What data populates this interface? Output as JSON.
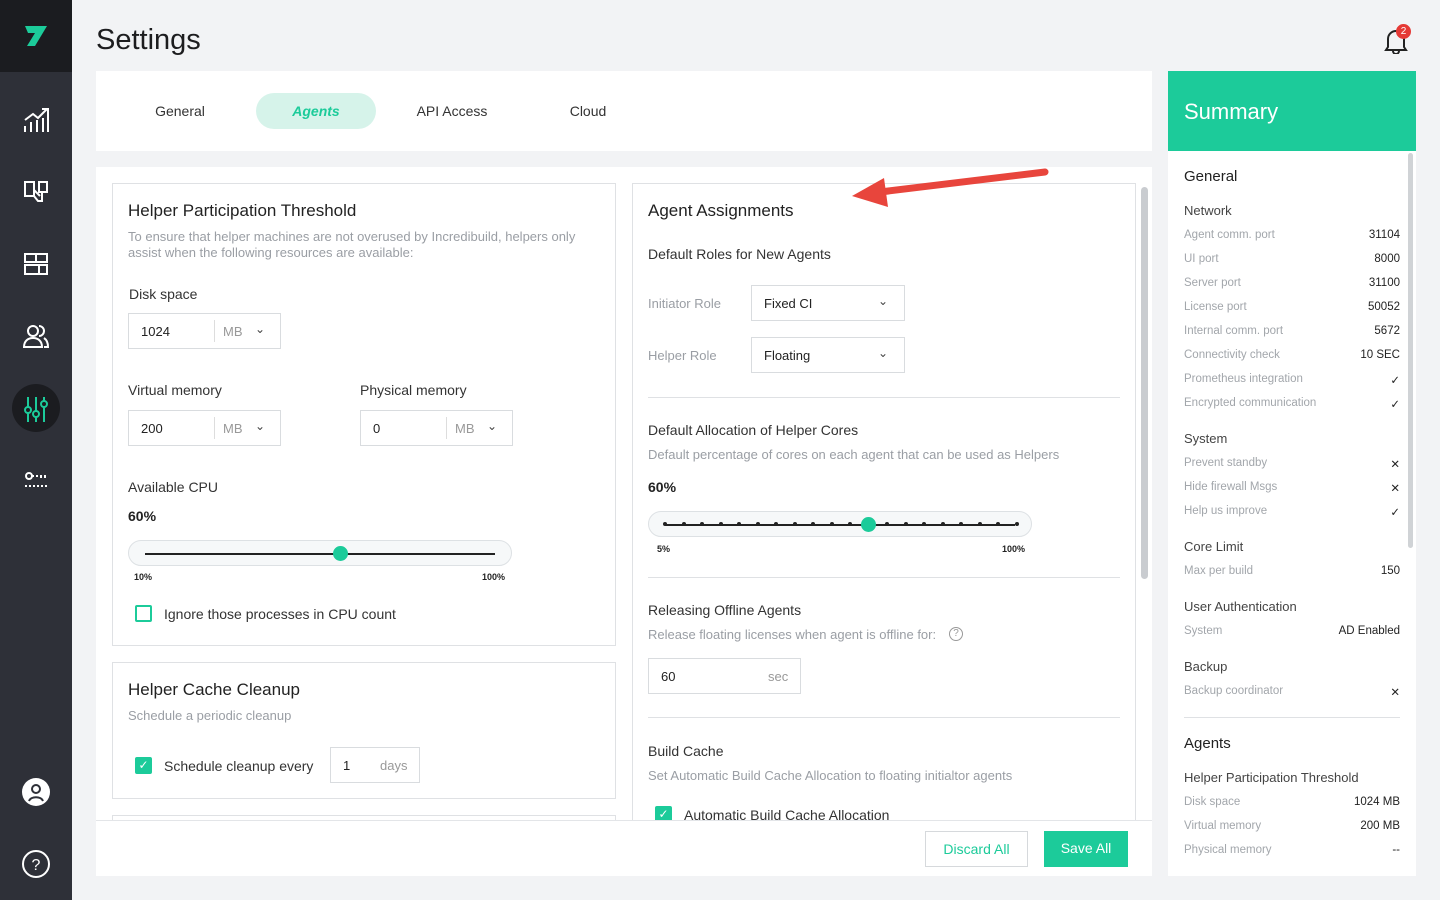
{
  "page": {
    "title": "Settings",
    "notifications": "2"
  },
  "tabs": [
    {
      "label": "General"
    },
    {
      "label": "Agents"
    },
    {
      "label": "API Access"
    },
    {
      "label": "Cloud"
    }
  ],
  "threshold": {
    "title": "Helper Participation Threshold",
    "desc": "To ensure that helper machines are not overused by Incredibuild, helpers only assist when the following resources are available:",
    "disk": {
      "label": "Disk space",
      "value": "1024",
      "unit": "MB"
    },
    "virtual": {
      "label": "Virtual memory",
      "value": "200",
      "unit": "MB"
    },
    "physical": {
      "label": "Physical memory",
      "value": "0",
      "unit": "MB"
    },
    "cpu": {
      "label": "Available CPU",
      "value_label": "60%",
      "value": 60,
      "min_label": "10%",
      "max_label": "100%",
      "min": 10,
      "max": 100
    },
    "ignore": {
      "label": "Ignore those processes in CPU count",
      "checked": false
    }
  },
  "cache": {
    "title": "Helper Cache Cleanup",
    "desc": "Schedule a periodic cleanup",
    "schedule_label": "Schedule cleanup every",
    "value": "1",
    "unit": "days",
    "checked": true
  },
  "assign": {
    "title": "Agent Assignments",
    "roles_title": "Default Roles for New Agents",
    "initiator": {
      "label": "Initiator Role",
      "value": "Fixed CI"
    },
    "helper": {
      "label": "Helper Role",
      "value": "Floating"
    },
    "alloc": {
      "title": "Default Allocation of Helper Cores",
      "desc": "Default percentage of cores on each agent that can be used as Helpers",
      "value_label": "60%",
      "value": 60,
      "min": 5,
      "max": 100,
      "step": 5,
      "min_label": "5%",
      "max_label": "100%"
    },
    "offline": {
      "title": "Releasing Offline Agents",
      "desc": "Release floating licenses when agent is offline for:",
      "value": "60",
      "unit": "sec"
    },
    "build_cache": {
      "title": "Build Cache",
      "desc": "Set Automatic Build Cache Allocation to floating initialtor agents",
      "checkbox": "Automatic Build Cache Allocation",
      "checked": true
    }
  },
  "footer": {
    "discard": "Discard All",
    "save": "Save All"
  },
  "summary": {
    "title": "Summary",
    "general": "General",
    "network": "Network",
    "network_rows": [
      [
        "Agent comm. port",
        "31104"
      ],
      [
        "UI port",
        "8000"
      ],
      [
        "Server port",
        "31100"
      ],
      [
        "License port",
        "50052"
      ],
      [
        "Internal comm. port",
        "5672"
      ],
      [
        "Connectivity check",
        "10 SEC"
      ],
      [
        "Prometheus integration",
        "✓"
      ],
      [
        "Encrypted communication",
        "✓"
      ]
    ],
    "system": "System",
    "system_rows": [
      [
        "Prevent standby",
        "✕"
      ],
      [
        "Hide firewall Msgs",
        "✕"
      ],
      [
        "Help us improve",
        "✓"
      ]
    ],
    "core": "Core Limit",
    "core_rows": [
      [
        "Max per build",
        "150"
      ]
    ],
    "auth": "User Authentication",
    "auth_rows": [
      [
        "System",
        "AD Enabled"
      ]
    ],
    "backup": "Backup",
    "backup_rows": [
      [
        "Backup coordinator",
        "✕"
      ]
    ],
    "agents": "Agents",
    "hpt": "Helper Participation Threshold",
    "hpt_rows": [
      [
        "Disk space",
        "1024 MB"
      ],
      [
        "Virtual memory",
        "200 MB"
      ],
      [
        "Physical memory",
        "--"
      ]
    ]
  },
  "colors": {
    "accent": "#1ccb9a",
    "sidebar": "#2e3038",
    "annotation_arrow": "#e8453c"
  }
}
